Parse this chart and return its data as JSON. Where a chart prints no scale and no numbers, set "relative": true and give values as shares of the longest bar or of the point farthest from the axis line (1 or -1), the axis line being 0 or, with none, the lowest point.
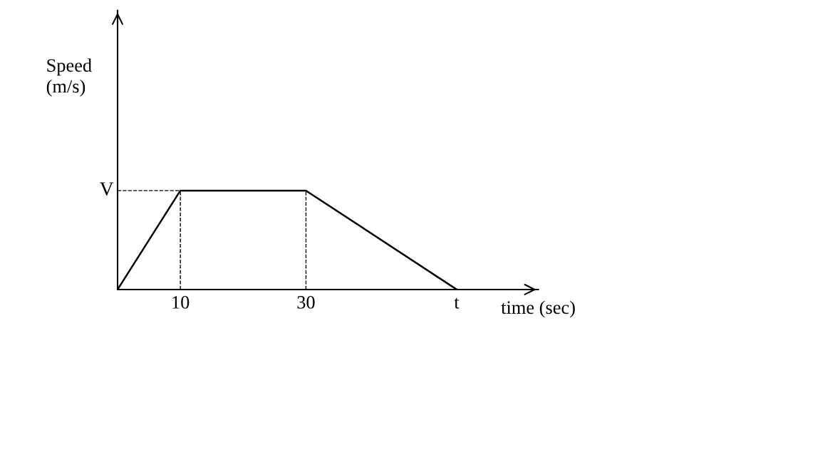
{
  "chart_data": {
    "type": "line",
    "xlabel": "time (sec)",
    "annotations": [
      "Speed\n(m/s)"
    ],
    "relative": true,
    "x": [
      0,
      10,
      30,
      54
    ],
    "series": [
      {
        "color": "#000000",
        "values": [
          0,
          1,
          1,
          0
        ]
      }
    ],
    "xlim": [
      0,
      67
    ],
    "xticks": [
      10,
      30,
      {
        "value": 54,
        "label": "t"
      }
    ],
    "tick_labels": "x",
    "grid": false,
    "legend": false,
    "marker": "none",
    "line_style": "solid",
    "ref_lines": [
      {
        "axis": "y",
        "value": 1,
        "label": "V",
        "line_style": "dashed",
        "color": "#000000"
      },
      {
        "axis": "x",
        "value": 10,
        "line_style": "dashed",
        "color": "#000000"
      },
      {
        "axis": "x",
        "value": 30,
        "line_style": "dashed",
        "color": "#000000"
      }
    ]
  }
}
